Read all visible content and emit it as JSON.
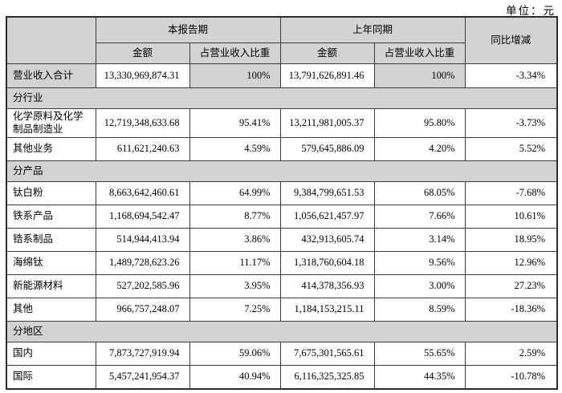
{
  "unit_label": "单位：元",
  "colors": {
    "header_bg": "#d3d3d3",
    "border": "#3a3a3a",
    "text": "#000000"
  },
  "table": {
    "header": {
      "current_period": "本报告期",
      "prior_period": "上年同期",
      "yoy_change": "同比增减",
      "amount_current": "金额",
      "share_current": "占营业收入比重",
      "amount_prior": "金额",
      "share_prior": "占营业收入比重"
    },
    "rows": [
      {
        "type": "total",
        "label": "营业收入合计",
        "cur_amount": "13,330,969,874.31",
        "cur_share": "100%",
        "prev_amount": "13,791,626,891.46",
        "prev_share": "100%",
        "yoy": "-3.34%"
      },
      {
        "type": "section",
        "label": "分行业"
      },
      {
        "type": "data",
        "label": "化学原料及化学制品制造业",
        "cur_amount": "12,719,348,633.68",
        "cur_share": "95.41%",
        "prev_amount": "13,211,981,005.37",
        "prev_share": "95.80%",
        "yoy": "-3.73%"
      },
      {
        "type": "data",
        "label": "其他业务",
        "cur_amount": "611,621,240.63",
        "cur_share": "4.59%",
        "prev_amount": "579,645,886.09",
        "prev_share": "4.20%",
        "yoy": "5.52%"
      },
      {
        "type": "section",
        "label": "分产品"
      },
      {
        "type": "data",
        "label": "钛白粉",
        "cur_amount": "8,663,642,460.61",
        "cur_share": "64.99%",
        "prev_amount": "9,384,799,651.53",
        "prev_share": "68.05%",
        "yoy": "-7.68%"
      },
      {
        "type": "data",
        "label": "铁系产品",
        "cur_amount": "1,168,694,542.47",
        "cur_share": "8.77%",
        "prev_amount": "1,056,621,457.97",
        "prev_share": "7.66%",
        "yoy": "10.61%"
      },
      {
        "type": "data",
        "label": "锆系制品",
        "cur_amount": "514,944,413.94",
        "cur_share": "3.86%",
        "prev_amount": "432,913,605.74",
        "prev_share": "3.14%",
        "yoy": "18.95%"
      },
      {
        "type": "data",
        "label": "海绵钛",
        "cur_amount": "1,489,728,623.26",
        "cur_share": "11.17%",
        "prev_amount": "1,318,760,604.18",
        "prev_share": "9.56%",
        "yoy": "12.96%"
      },
      {
        "type": "data",
        "label": "新能源材料",
        "cur_amount": "527,202,585.96",
        "cur_share": "3.95%",
        "prev_amount": "414,378,356.93",
        "prev_share": "3.00%",
        "yoy": "27.23%"
      },
      {
        "type": "data",
        "label": "其他",
        "cur_amount": "966,757,248.07",
        "cur_share": "7.25%",
        "prev_amount": "1,184,153,215.11",
        "prev_share": "8.59%",
        "yoy": "-18.36%"
      },
      {
        "type": "section",
        "label": "分地区"
      },
      {
        "type": "data",
        "label": "国内",
        "cur_amount": "7,873,727,919.94",
        "cur_share": "59.06%",
        "prev_amount": "7,675,301,565.61",
        "prev_share": "55.65%",
        "yoy": "2.59%"
      },
      {
        "type": "data",
        "label": "国际",
        "cur_amount": "5,457,241,954.37",
        "cur_share": "40.94%",
        "prev_amount": "6,116,325,325.85",
        "prev_share": "44.35%",
        "yoy": "-10.78%"
      }
    ]
  }
}
